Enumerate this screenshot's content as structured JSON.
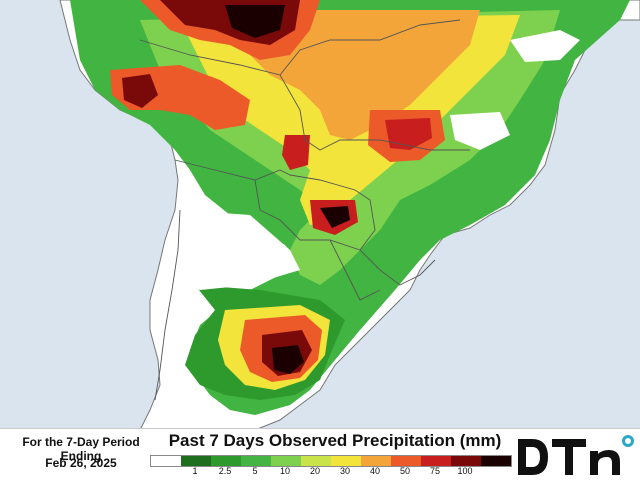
{
  "map": {
    "colors": {
      "ocean": "#d9e4ee",
      "land": "#ffffff",
      "border": "#555555"
    },
    "precip_fields": [
      {
        "level": "1",
        "color": "#1f7a1f"
      },
      {
        "level": "2.5",
        "color": "#2e9a2e"
      },
      {
        "level": "5",
        "color": "#41b441"
      },
      {
        "level": "10",
        "color": "#7ad151"
      },
      {
        "level": "20",
        "color": "#cde83a"
      },
      {
        "level": "30",
        "color": "#f5e33a"
      },
      {
        "level": "40",
        "color": "#f4a93a"
      },
      {
        "level": "50",
        "color": "#ee6b2e"
      },
      {
        "level": "75",
        "color": "#c81e1e"
      },
      {
        "level": "100",
        "color": "#3a0a0a"
      }
    ]
  },
  "footer": {
    "period_label": "For the 7-Day Period Ending",
    "period_date": "Feb 26, 2025",
    "legend_title": "Past 7 Days Observed Precipitation (mm)",
    "legend_ticks": [
      "1",
      "2.5",
      "5",
      "10",
      "20",
      "30",
      "40",
      "50",
      "75",
      "100"
    ],
    "legend_colors": [
      "#ffffff",
      "#1f6e1f",
      "#2e9a2e",
      "#44b444",
      "#7ed14e",
      "#c9e44a",
      "#f2e43a",
      "#f3a53a",
      "#ec5a2a",
      "#c81e1e",
      "#7a0a0a",
      "#1a0000"
    ]
  },
  "logo": {
    "text": "DTN",
    "accent_color": "#2aa8c9"
  }
}
